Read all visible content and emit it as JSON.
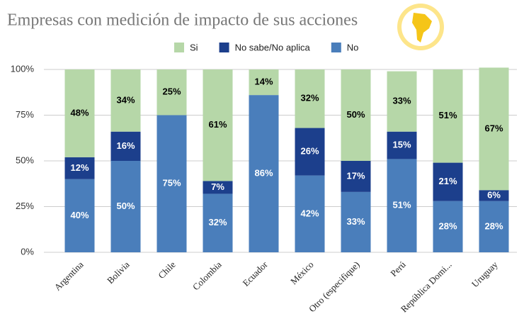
{
  "chart_data": {
    "type": "stacked_bar",
    "title": "Empresas con medición de impacto de sus acciones",
    "categories": [
      "Argentina",
      "Bolivia",
      "Chile",
      "Colombia",
      "Ecuador",
      "México",
      "Otro (especifique)",
      "Perú",
      "República Domi...",
      "Uruguay"
    ],
    "series": [
      {
        "name": "No",
        "color": "#4a7ebb",
        "label_color": "#ffffff",
        "values": [
          40,
          50,
          75,
          32,
          86,
          42,
          33,
          51,
          28,
          28
        ],
        "value_labels": [
          "40%",
          "50%",
          "75%",
          "32%",
          "86%",
          "42%",
          "33%",
          "51%",
          "28%",
          "28%"
        ]
      },
      {
        "name": "No sabe/No aplica",
        "color": "#1c3f8c",
        "label_color": "#ffffff",
        "values": [
          12,
          16,
          null,
          7,
          null,
          26,
          17,
          15,
          21,
          6
        ],
        "value_labels": [
          "12%",
          "16%",
          null,
          "7%",
          null,
          "26%",
          "17%",
          "15%",
          "21%",
          "6%"
        ]
      },
      {
        "name": "Si",
        "color": "#b6d7a8",
        "label_color": "#000000",
        "values": [
          48,
          34,
          25,
          61,
          14,
          32,
          50,
          33,
          51,
          67
        ],
        "value_labels": [
          "48%",
          "34%",
          "25%",
          "61%",
          "14%",
          "32%",
          "50%",
          "33%",
          "51%",
          "67%"
        ]
      }
    ],
    "legend_order": [
      2,
      1,
      0
    ],
    "ylim": [
      0,
      100
    ],
    "yticks": [
      {
        "value": 0,
        "label": "0%"
      },
      {
        "value": 25,
        "label": "25%"
      },
      {
        "value": 50,
        "label": "50%"
      },
      {
        "value": 75,
        "label": "75%"
      },
      {
        "value": 100,
        "label": "100%"
      }
    ],
    "grid": true
  }
}
